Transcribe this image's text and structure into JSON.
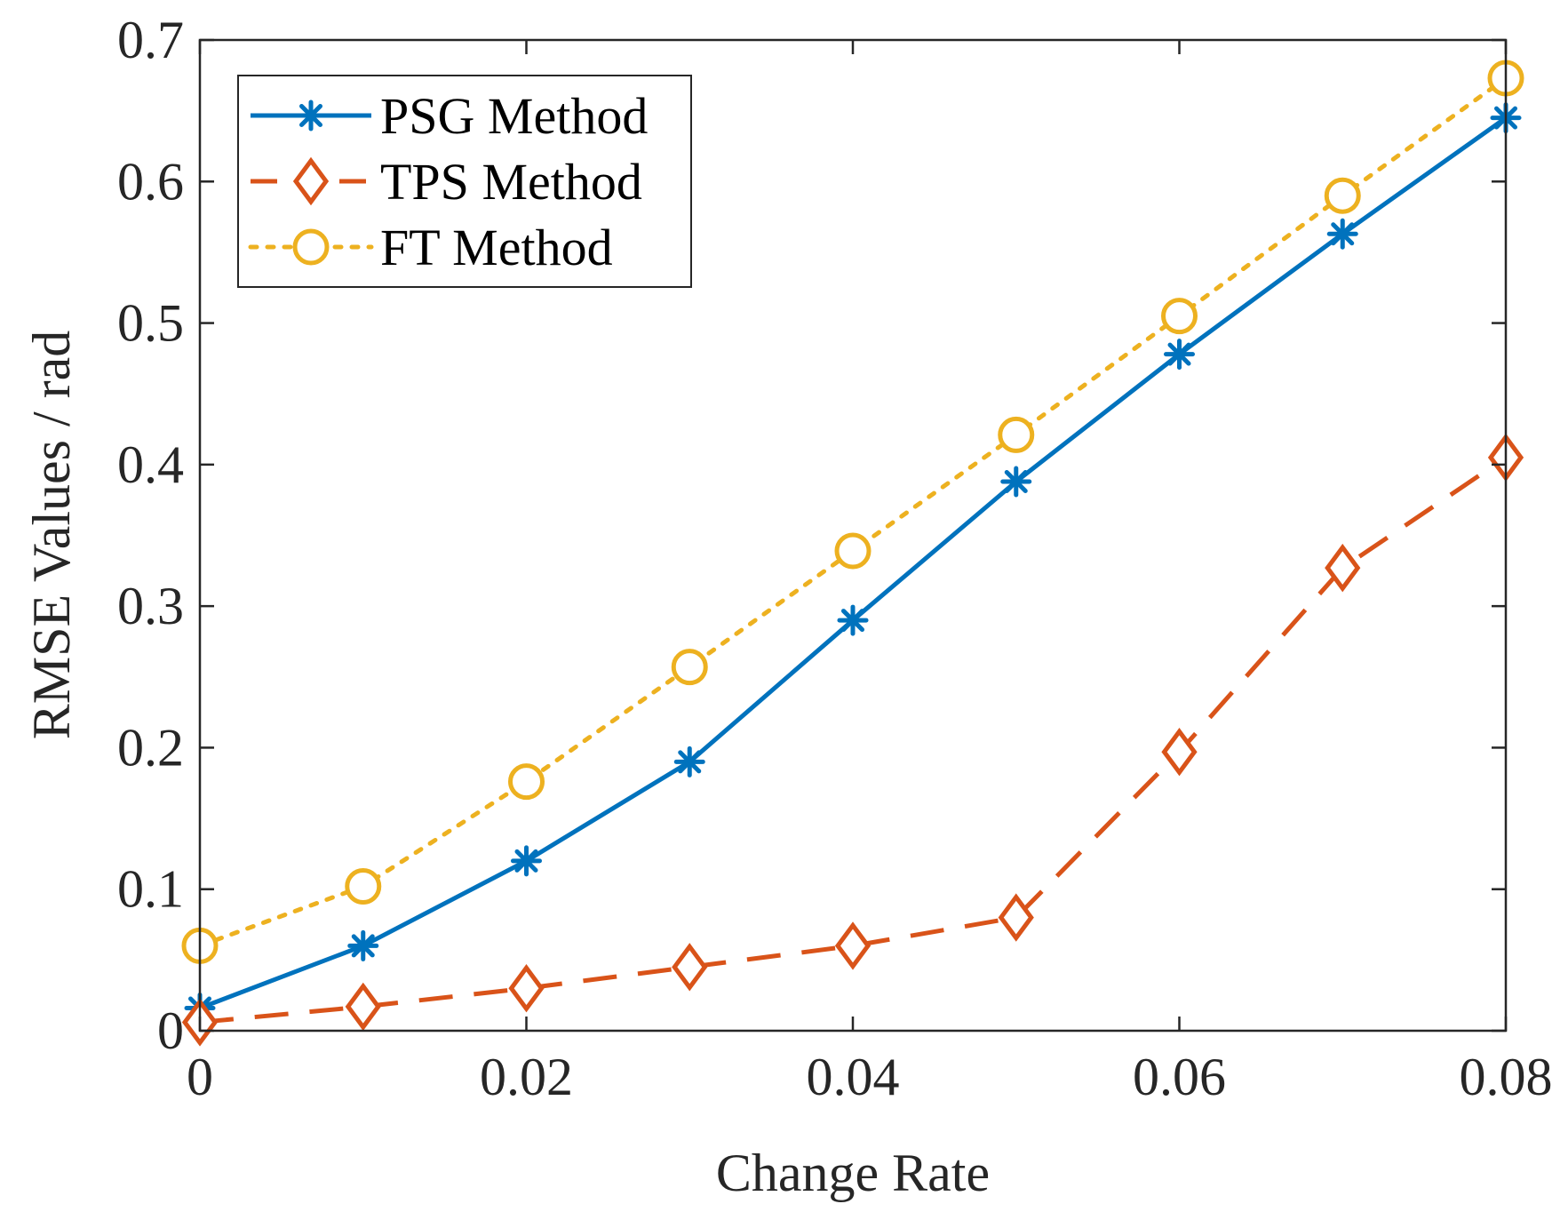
{
  "chart_data": {
    "type": "line",
    "title": "",
    "xlabel": "Change Rate",
    "ylabel": "RMSE Values / rad",
    "xlim": [
      0,
      0.08
    ],
    "ylim": [
      0,
      0.7
    ],
    "grid": false,
    "legend_position": "top-left",
    "x": [
      0,
      0.01,
      0.02,
      0.03,
      0.04,
      0.05,
      0.06,
      0.07,
      0.08
    ],
    "x_ticks": [
      0,
      0.02,
      0.04,
      0.06,
      0.08
    ],
    "x_tick_labels": [
      "0",
      "0.02",
      "0.04",
      "0.06",
      "0.08"
    ],
    "y_ticks": [
      0,
      0.1,
      0.2,
      0.3,
      0.4,
      0.5,
      0.6,
      0.7
    ],
    "y_tick_labels": [
      "0",
      "0.1",
      "0.2",
      "0.3",
      "0.4",
      "0.5",
      "0.6",
      "0.7"
    ],
    "series": [
      {
        "name": "PSG Method",
        "values": [
          0.016,
          0.06,
          0.12,
          0.19,
          0.29,
          0.388,
          0.478,
          0.563,
          0.645
        ],
        "color": "#0072BD",
        "line_style": "solid",
        "marker": "asterisk"
      },
      {
        "name": "TPS Method",
        "values": [
          0.006,
          0.017,
          0.03,
          0.045,
          0.06,
          0.08,
          0.197,
          0.327,
          0.405
        ],
        "color": "#D95319",
        "line_style": "dashed",
        "marker": "diamond"
      },
      {
        "name": "FT Method",
        "values": [
          0.06,
          0.102,
          0.176,
          0.257,
          0.339,
          0.421,
          0.505,
          0.59,
          0.673
        ],
        "color": "#EDB120",
        "line_style": "dotted",
        "marker": "circle"
      }
    ]
  }
}
